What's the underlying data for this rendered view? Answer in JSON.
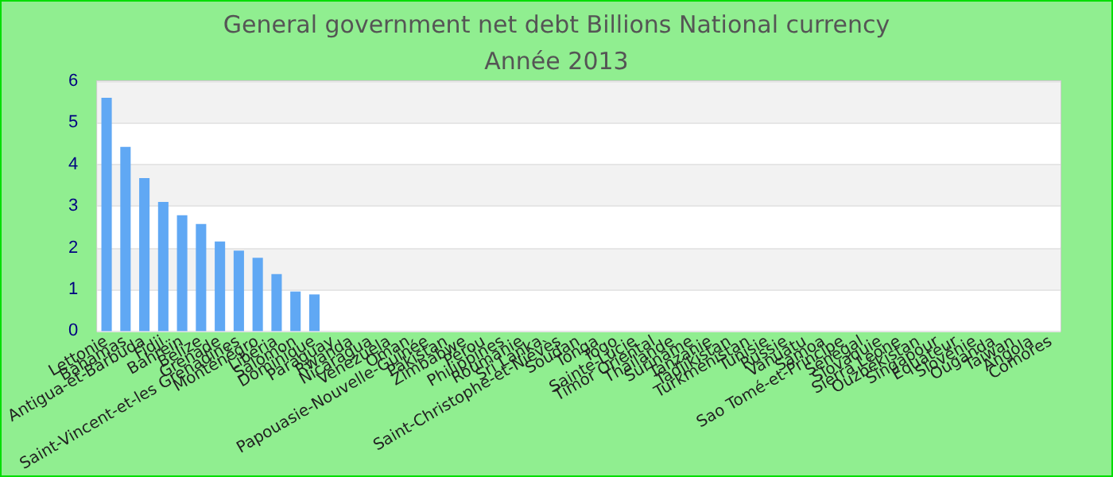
{
  "chart_data": {
    "type": "bar",
    "title": "General government net debt Billions National currency",
    "subtitle": "Année 2013",
    "categories": [
      "Lettonie",
      "Bahamas",
      "Antigua-et-Barbuda",
      "Fidji",
      "Bahreïn",
      "Belize",
      "Grenade",
      "Saint-Vincent-et-les Grenadines",
      "Monténégro",
      "Libéria",
      "Salomon",
      "Dominique",
      "Paraguay",
      "Rwanda",
      "Nicaragua",
      "Venezuela",
      "Oman",
      "Papouasie-Nouvelle-Guinée",
      "Pakistan",
      "Zimbabwe",
      "Pérou",
      "Philippines",
      "Roumanie",
      "Sri Lanka",
      "Saint-Christophe-et-Niévès",
      "Soudan",
      "Tonga",
      "Togo",
      "Sainte-Lucie",
      "Timor Oriental",
      "Thaïlande",
      "Suriname",
      "Tanzanie",
      "Tadjikistan",
      "Turkménistan",
      "Tunisie",
      "Russie",
      "Vanuatu",
      "Samoa",
      "Sao Tomé-et-Principe",
      "Sénégal",
      "Slovaquie",
      "Sierra Leone",
      "Ouzbékistan",
      "Singapour",
      "Équateur",
      "Slovénie",
      "Ouganda",
      "Taïwan",
      "Angola",
      "Comores"
    ],
    "values": [
      5.6,
      4.42,
      3.67,
      3.1,
      2.78,
      2.57,
      2.15,
      1.93,
      1.76,
      1.37,
      0.95,
      0.88,
      null,
      null,
      null,
      null,
      null,
      null,
      null,
      null,
      null,
      null,
      null,
      null,
      null,
      null,
      null,
      null,
      null,
      null,
      null,
      null,
      null,
      null,
      null,
      null,
      null,
      null,
      null,
      null,
      null,
      null,
      null,
      null,
      null,
      null,
      null,
      null,
      null,
      null,
      null
    ],
    "color": "#60a8f4",
    "ylim": [
      0,
      6
    ],
    "yticks": [
      0,
      1,
      2,
      3,
      4,
      5,
      6
    ],
    "grid": "y"
  }
}
